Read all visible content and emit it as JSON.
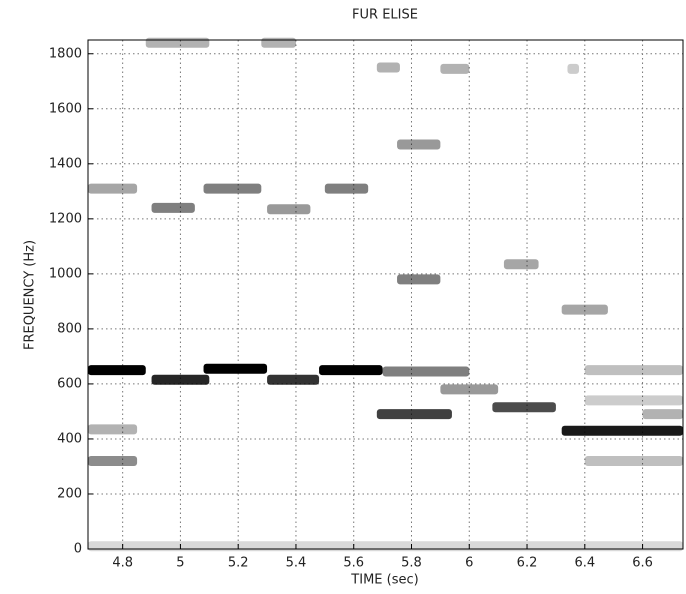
{
  "chart_data": {
    "type": "spectrogram",
    "title": "FUR ELISE",
    "x_label": "TIME (sec)",
    "y_label": "FREQUENCY (Hz)",
    "xlim": [
      4.68,
      6.74
    ],
    "ylim": [
      0,
      1850
    ],
    "xticks": [
      4.8,
      5,
      5.2,
      5.4,
      5.6,
      5.8,
      6,
      6.2,
      6.4,
      6.6
    ],
    "yticks": [
      0,
      200,
      400,
      600,
      800,
      1000,
      1200,
      1400,
      1600,
      1800
    ],
    "grid": true,
    "color": "#000000",
    "segments": [
      {
        "x": [
          4.68,
          4.88
        ],
        "y": 650,
        "intensity": 1.0
      },
      {
        "x": [
          4.9,
          5.1
        ],
        "y": 615,
        "intensity": 0.85
      },
      {
        "x": [
          5.08,
          5.3
        ],
        "y": 655,
        "intensity": 1.0
      },
      {
        "x": [
          5.3,
          5.48
        ],
        "y": 615,
        "intensity": 0.8
      },
      {
        "x": [
          5.48,
          5.7
        ],
        "y": 650,
        "intensity": 1.0
      },
      {
        "x": [
          5.7,
          6.0
        ],
        "y": 645,
        "intensity": 0.5
      },
      {
        "x": [
          5.68,
          5.94
        ],
        "y": 490,
        "intensity": 0.75
      },
      {
        "x": [
          5.9,
          6.1
        ],
        "y": 580,
        "intensity": 0.4
      },
      {
        "x": [
          6.08,
          6.3
        ],
        "y": 515,
        "intensity": 0.7
      },
      {
        "x": [
          6.32,
          6.74
        ],
        "y": 430,
        "intensity": 0.9
      },
      {
        "x": [
          4.68,
          4.85
        ],
        "y": 435,
        "intensity": 0.3
      },
      {
        "x": [
          4.68,
          4.85
        ],
        "y": 320,
        "intensity": 0.45
      },
      {
        "x": [
          4.68,
          4.85
        ],
        "y": 1310,
        "intensity": 0.35
      },
      {
        "x": [
          4.9,
          5.05
        ],
        "y": 1240,
        "intensity": 0.5
      },
      {
        "x": [
          5.08,
          5.28
        ],
        "y": 1310,
        "intensity": 0.5
      },
      {
        "x": [
          5.3,
          5.45
        ],
        "y": 1235,
        "intensity": 0.4
      },
      {
        "x": [
          5.5,
          5.65
        ],
        "y": 1310,
        "intensity": 0.5
      },
      {
        "x": [
          5.75,
          5.9
        ],
        "y": 980,
        "intensity": 0.5
      },
      {
        "x": [
          5.75,
          5.9
        ],
        "y": 1470,
        "intensity": 0.4
      },
      {
        "x": [
          5.68,
          5.76
        ],
        "y": 1750,
        "intensity": 0.3
      },
      {
        "x": [
          5.9,
          6.0
        ],
        "y": 1745,
        "intensity": 0.3
      },
      {
        "x": [
          4.88,
          5.1
        ],
        "y": 1840,
        "intensity": 0.3
      },
      {
        "x": [
          5.28,
          5.4
        ],
        "y": 1840,
        "intensity": 0.3
      },
      {
        "x": [
          6.12,
          6.24
        ],
        "y": 1035,
        "intensity": 0.35
      },
      {
        "x": [
          6.32,
          6.48
        ],
        "y": 870,
        "intensity": 0.35
      },
      {
        "x": [
          6.34,
          6.38
        ],
        "y": 1745,
        "intensity": 0.2
      },
      {
        "x": [
          6.4,
          6.74
        ],
        "y": 650,
        "intensity": 0.25
      },
      {
        "x": [
          6.6,
          6.74
        ],
        "y": 490,
        "intensity": 0.3
      },
      {
        "x": [
          6.4,
          6.74
        ],
        "y": 320,
        "intensity": 0.25
      },
      {
        "x": [
          6.4,
          6.74
        ],
        "y": 540,
        "intensity": 0.2
      },
      {
        "x": [
          4.68,
          6.74
        ],
        "y": 10,
        "intensity": 0.15
      }
    ]
  }
}
